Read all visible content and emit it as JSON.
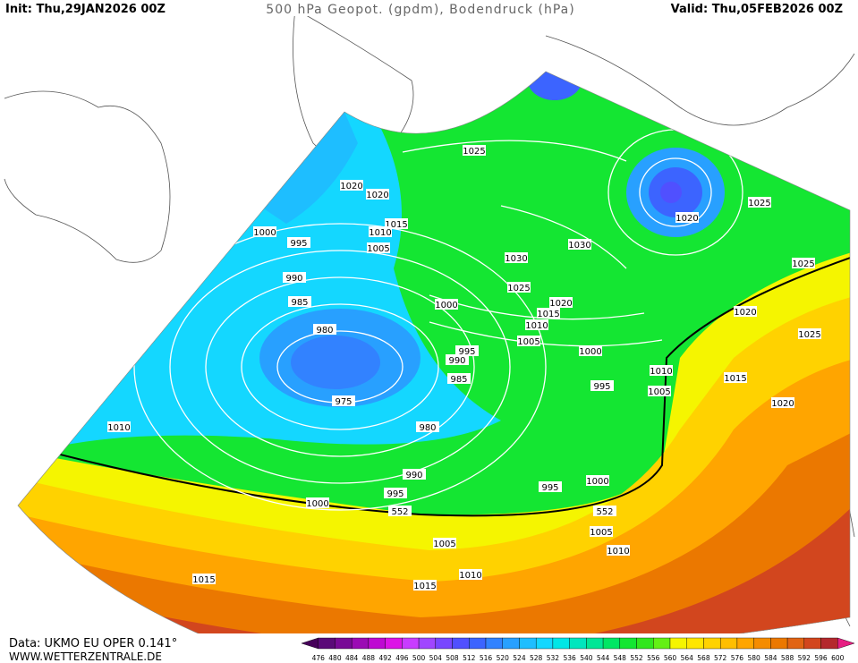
{
  "header": {
    "init": "Init: Thu,29JAN2026 00Z",
    "title": "500 hPa Geopot. (gpdm), Bodendruck (hPa)",
    "valid": "Valid: Thu,05FEB2026 00Z"
  },
  "isobar_labels": [
    1025,
    1020,
    1020,
    1015,
    1010,
    1005,
    1000,
    995,
    990,
    985,
    980,
    975,
    980,
    1000,
    995,
    990,
    985,
    1030,
    1030,
    1025,
    1020,
    1015,
    1010,
    1005,
    1000,
    995,
    1020,
    1025,
    1025,
    1020,
    1025,
    1010,
    1005,
    1015,
    1020,
    1010,
    990,
    995,
    1000,
    552,
    995,
    1000,
    552,
    1005,
    1010,
    1005,
    1010,
    1015,
    1015
  ],
  "colorbar": {
    "ticks": [
      476,
      480,
      484,
      488,
      492,
      496,
      500,
      504,
      508,
      512,
      516,
      520,
      524,
      528,
      532,
      536,
      540,
      544,
      548,
      552,
      556,
      560,
      564,
      568,
      572,
      576,
      580,
      584,
      588,
      592,
      596,
      600
    ],
    "colors": [
      "#46005a",
      "#5a0a78",
      "#780a96",
      "#9b0ab4",
      "#be0ad2",
      "#dc14e6",
      "#c83cff",
      "#a046ff",
      "#7846ff",
      "#5050ff",
      "#3c64ff",
      "#3282ff",
      "#28a0ff",
      "#1ebeff",
      "#14d7ff",
      "#00e6e6",
      "#00e6be",
      "#00e696",
      "#00e664",
      "#14e632",
      "#32e61e",
      "#64f014",
      "#f5f500",
      "#ffe600",
      "#ffd200",
      "#ffbe00",
      "#ffa500",
      "#f58c00",
      "#eb7800",
      "#e16414",
      "#d2461e",
      "#b4282d",
      "#e61e82"
    ]
  },
  "footer": {
    "source": "Data: UKMO EU OPER 0.141°",
    "site": "WWW.WETTERZENTRALE.DE"
  }
}
